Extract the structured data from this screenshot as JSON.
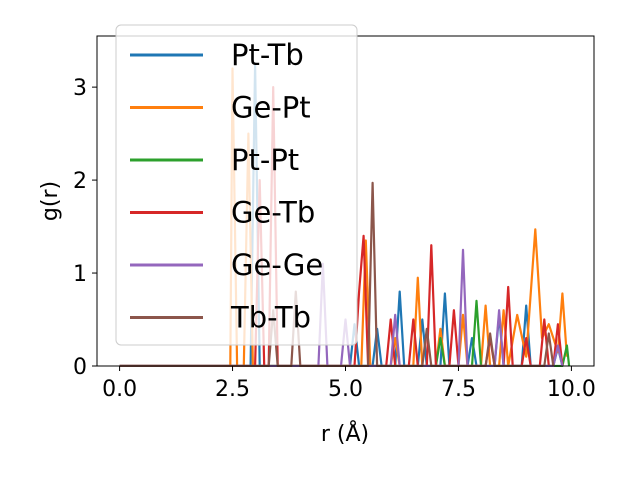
{
  "chart_data": {
    "type": "line",
    "xlabel": "r (Å)",
    "ylabel": "g(r)",
    "xlim": [
      -0.5,
      10.5
    ],
    "ylim": [
      0,
      3.55
    ],
    "xticks": [
      0.0,
      2.5,
      5.0,
      7.5,
      10.0
    ],
    "xtick_labels": [
      "0.0",
      "2.5",
      "5.0",
      "7.5",
      "10.0"
    ],
    "yticks": [
      0,
      1,
      2,
      3
    ],
    "ytick_labels": [
      "0",
      "1",
      "2",
      "3"
    ],
    "grid": false,
    "legend_position": "top-left",
    "series": [
      {
        "name": "Pt-Tb",
        "color": "#1f77b4",
        "points": [
          [
            0,
            0
          ],
          [
            2.9,
            0
          ],
          [
            3.0,
            3.25
          ],
          [
            3.1,
            0
          ],
          [
            5.1,
            0
          ],
          [
            5.2,
            0.45
          ],
          [
            5.3,
            0
          ],
          [
            5.6,
            0
          ],
          [
            5.7,
            0.4
          ],
          [
            5.8,
            0
          ],
          [
            6.1,
            0
          ],
          [
            6.2,
            0.8
          ],
          [
            6.3,
            0
          ],
          [
            6.6,
            0
          ],
          [
            6.7,
            0.5
          ],
          [
            6.8,
            0
          ],
          [
            7.1,
            0
          ],
          [
            7.2,
            0.78
          ],
          [
            7.3,
            0
          ],
          [
            7.7,
            0
          ],
          [
            7.8,
            0.3
          ],
          [
            7.9,
            0
          ],
          [
            8.3,
            0
          ],
          [
            8.4,
            0.55
          ],
          [
            8.5,
            0
          ],
          [
            8.9,
            0
          ],
          [
            9.0,
            0.65
          ],
          [
            9.1,
            0
          ],
          [
            9.6,
            0
          ],
          [
            9.7,
            0.2
          ],
          [
            9.8,
            0
          ]
        ]
      },
      {
        "name": "Ge-Pt",
        "color": "#ff7f0e",
        "points": [
          [
            0,
            0
          ],
          [
            2.45,
            0
          ],
          [
            2.5,
            3.2
          ],
          [
            2.6,
            0
          ],
          [
            2.75,
            0
          ],
          [
            2.85,
            2.5
          ],
          [
            2.95,
            0
          ],
          [
            5.35,
            0
          ],
          [
            5.45,
            1.35
          ],
          [
            5.55,
            0
          ],
          [
            6.0,
            0
          ],
          [
            6.1,
            0.3
          ],
          [
            6.2,
            0
          ],
          [
            6.5,
            0
          ],
          [
            6.6,
            0.95
          ],
          [
            6.7,
            0
          ],
          [
            7.0,
            0
          ],
          [
            7.1,
            0.4
          ],
          [
            7.2,
            0
          ],
          [
            7.5,
            0
          ],
          [
            7.6,
            0.55
          ],
          [
            7.7,
            0
          ],
          [
            8.0,
            0
          ],
          [
            8.1,
            0.65
          ],
          [
            8.2,
            0
          ],
          [
            8.4,
            0
          ],
          [
            8.5,
            0.6
          ],
          [
            8.6,
            0
          ],
          [
            8.8,
            0.55
          ],
          [
            9.0,
            0.1
          ],
          [
            9.2,
            1.47
          ],
          [
            9.35,
            0.3
          ],
          [
            9.5,
            0.45
          ],
          [
            9.7,
            0.15
          ],
          [
            9.8,
            0.78
          ],
          [
            9.9,
            0.1
          ]
        ]
      },
      {
        "name": "Pt-Pt",
        "color": "#2ca02c",
        "points": [
          [
            0,
            0
          ],
          [
            7.0,
            0
          ],
          [
            7.1,
            0.3
          ],
          [
            7.2,
            0
          ],
          [
            7.8,
            0
          ],
          [
            7.9,
            0.7
          ],
          [
            8.0,
            0
          ],
          [
            9.8,
            0
          ],
          [
            9.9,
            0.22
          ],
          [
            9.95,
            0
          ]
        ]
      },
      {
        "name": "Ge-Tb",
        "color": "#d62728",
        "points": [
          [
            0,
            0
          ],
          [
            3.0,
            0
          ],
          [
            3.1,
            2.0
          ],
          [
            3.2,
            0
          ],
          [
            3.3,
            0
          ],
          [
            3.4,
            3.0
          ],
          [
            3.5,
            0
          ],
          [
            5.2,
            0
          ],
          [
            5.3,
            0.8
          ],
          [
            5.4,
            1.4
          ],
          [
            5.5,
            0
          ],
          [
            5.9,
            0
          ],
          [
            6.0,
            0.5
          ],
          [
            6.1,
            0
          ],
          [
            6.4,
            0
          ],
          [
            6.5,
            0.5
          ],
          [
            6.6,
            0
          ],
          [
            6.8,
            0
          ],
          [
            6.9,
            1.3
          ],
          [
            7.0,
            0
          ],
          [
            7.3,
            0
          ],
          [
            7.4,
            0.6
          ],
          [
            7.5,
            0
          ],
          [
            8.1,
            0
          ],
          [
            8.2,
            0.3
          ],
          [
            8.3,
            0
          ],
          [
            8.5,
            0
          ],
          [
            8.6,
            0.85
          ],
          [
            8.7,
            0
          ],
          [
            8.9,
            0
          ],
          [
            9.0,
            0.3
          ],
          [
            9.1,
            0
          ],
          [
            9.3,
            0
          ],
          [
            9.4,
            0.5
          ],
          [
            9.5,
            0
          ],
          [
            9.6,
            0
          ],
          [
            9.7,
            0.45
          ],
          [
            9.8,
            0
          ]
        ]
      },
      {
        "name": "Ge-Ge",
        "color": "#9467bd",
        "points": [
          [
            0,
            0
          ],
          [
            4.4,
            0
          ],
          [
            4.5,
            1.1
          ],
          [
            4.6,
            0
          ],
          [
            4.9,
            0
          ],
          [
            5.0,
            0.5
          ],
          [
            5.1,
            0
          ],
          [
            6.0,
            0
          ],
          [
            6.1,
            0.55
          ],
          [
            6.2,
            0
          ],
          [
            7.5,
            0
          ],
          [
            7.6,
            1.25
          ],
          [
            7.7,
            0
          ],
          [
            8.3,
            0
          ],
          [
            8.4,
            0.6
          ],
          [
            8.5,
            0
          ],
          [
            9.6,
            0
          ],
          [
            9.7,
            0.22
          ],
          [
            9.8,
            0
          ]
        ]
      },
      {
        "name": "Tb-Tb",
        "color": "#8c564b",
        "points": [
          [
            0,
            0
          ],
          [
            3.3,
            0
          ],
          [
            3.4,
            0.6
          ],
          [
            3.5,
            0
          ],
          [
            3.8,
            0
          ],
          [
            3.9,
            0.8
          ],
          [
            4.0,
            0
          ],
          [
            5.5,
            0
          ],
          [
            5.6,
            1.97
          ],
          [
            5.7,
            0
          ],
          [
            6.7,
            0
          ],
          [
            6.8,
            0.4
          ],
          [
            6.9,
            0
          ],
          [
            8.1,
            0
          ],
          [
            8.2,
            0.35
          ],
          [
            8.3,
            0
          ],
          [
            9.4,
            0
          ],
          [
            9.5,
            0.35
          ],
          [
            9.6,
            0
          ]
        ]
      }
    ]
  }
}
